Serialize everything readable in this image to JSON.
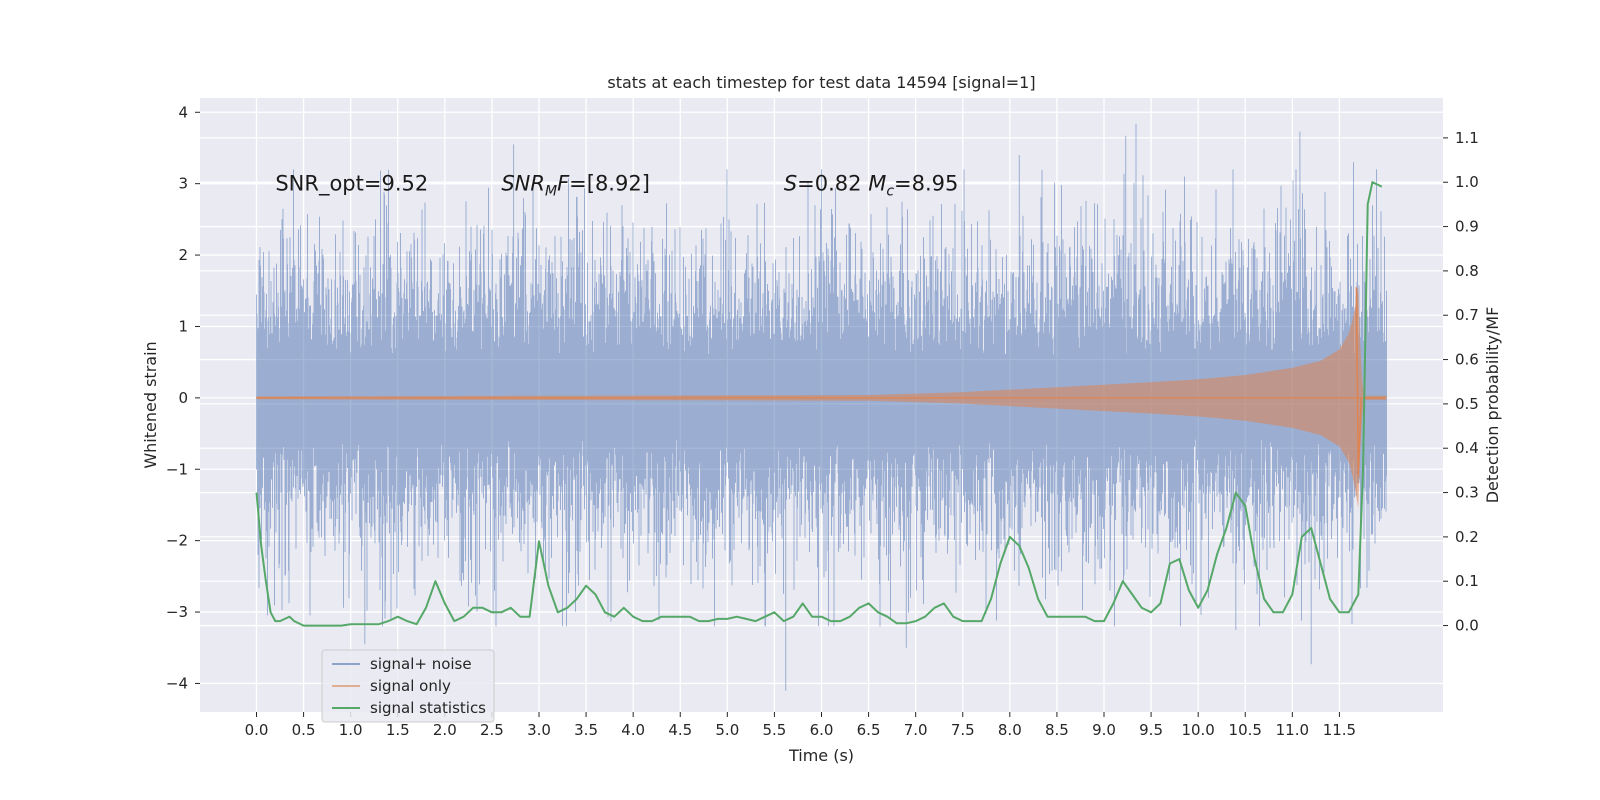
{
  "chart_data": {
    "type": "line",
    "title": "stats at each timestep for test data 14594 [signal=1]",
    "xlabel": "Time (s)",
    "ylabel": "Whitened strain",
    "y2label": "Detection probability/MF",
    "xlim": [
      -0.6,
      12.6
    ],
    "ylim": [
      -4.4,
      4.2
    ],
    "y2lim": [
      -0.195,
      1.19
    ],
    "xticks": [
      0.0,
      0.5,
      1.0,
      1.5,
      2.0,
      2.5,
      3.0,
      3.5,
      4.0,
      4.5,
      5.0,
      5.5,
      6.0,
      6.5,
      7.0,
      7.5,
      8.0,
      8.5,
      9.0,
      9.5,
      10.0,
      10.5,
      11.0,
      11.5
    ],
    "xtick_labels": [
      "0.0",
      "0.5",
      "1.0",
      "1.5",
      "2.0",
      "2.5",
      "3.0",
      "3.5",
      "4.0",
      "4.5",
      "5.0",
      "5.5",
      "6.0",
      "6.5",
      "7.0",
      "7.5",
      "8.0",
      "8.5",
      "9.0",
      "9.5",
      "10.0",
      "10.5",
      "11.0",
      "11.5"
    ],
    "yticks": [
      -4,
      -3,
      -2,
      -1,
      0,
      1,
      2,
      3,
      4
    ],
    "ytick_labels": [
      "−4",
      "−3",
      "−2",
      "−1",
      "0",
      "1",
      "2",
      "3",
      "4"
    ],
    "y2ticks": [
      0.0,
      0.1,
      0.2,
      0.3,
      0.4,
      0.5,
      0.6,
      0.7,
      0.8,
      0.9,
      1.0,
      1.1
    ],
    "y2tick_labels": [
      "0.0",
      "0.1",
      "0.2",
      "0.3",
      "0.4",
      "0.5",
      "0.6",
      "0.7",
      "0.8",
      "0.9",
      "1.0",
      "1.1"
    ],
    "grid": true,
    "legend_position": "lower-left",
    "annotations": [
      {
        "parts": [
          {
            "t": "SNR_opt=9.52"
          }
        ],
        "x": 0.2,
        "y": 3.0
      },
      {
        "parts": [
          {
            "t": "SNR",
            "i": true
          },
          {
            "t": "M",
            "i": true,
            "sub": true
          },
          {
            "t": "F",
            "i": true
          },
          {
            "t": "=[8.92]"
          }
        ],
        "x": 2.6,
        "y": 3.0
      },
      {
        "parts": [
          {
            "t": "S",
            "i": true
          },
          {
            "t": "=0.82   "
          },
          {
            "t": "M",
            "i": true
          },
          {
            "t": "c",
            "i": true,
            "sub": true
          },
          {
            "t": "=8.95"
          }
        ],
        "x": 5.6,
        "y": 3.0
      }
    ],
    "series": [
      {
        "name": "signal+ noise",
        "color": "#4c72b0",
        "axis": "left",
        "style": "noise",
        "t_range": [
          0.0,
          12.0
        ],
        "band_std": 0.95,
        "extremes": [
          {
            "x": 1.15,
            "y": -3.45
          },
          {
            "x": 2.73,
            "y": 3.55
          },
          {
            "x": 5.62,
            "y": -4.1
          },
          {
            "x": 6.9,
            "y": -3.5
          },
          {
            "x": 9.23,
            "y": 3.67
          },
          {
            "x": 9.34,
            "y": 3.84
          },
          {
            "x": 11.08,
            "y": 3.73
          },
          {
            "x": 11.2,
            "y": -3.73
          },
          {
            "x": 10.4,
            "y": -3.25
          },
          {
            "x": 8.1,
            "y": 3.4
          },
          {
            "x": 11.65,
            "y": 3.3
          },
          {
            "x": 6.0,
            "y": 3.2
          }
        ]
      },
      {
        "name": "signal only",
        "color": "#dd8452",
        "axis": "left",
        "style": "chirp",
        "envelope_x": [
          0.0,
          6.5,
          7.5,
          8.5,
          9.5,
          10.0,
          10.5,
          11.0,
          11.3,
          11.5,
          11.6,
          11.65,
          11.7,
          11.73,
          11.76,
          12.0
        ],
        "envelope_y": [
          0.02,
          0.04,
          0.08,
          0.15,
          0.22,
          0.26,
          0.32,
          0.42,
          0.52,
          0.68,
          0.9,
          1.15,
          1.55,
          0.4,
          0.03,
          0.03
        ],
        "spike": {
          "x": [
            11.68,
            11.7,
            11.73
          ],
          "y": [
            1.55,
            -1.1,
            0.0
          ]
        }
      },
      {
        "name": "signal statistics",
        "color": "#55a868",
        "axis": "right",
        "style": "line",
        "x": [
          0.0,
          0.05,
          0.1,
          0.15,
          0.2,
          0.25,
          0.3,
          0.35,
          0.4,
          0.5,
          0.6,
          0.7,
          0.8,
          0.9,
          1.0,
          1.1,
          1.2,
          1.3,
          1.4,
          1.5,
          1.6,
          1.7,
          1.8,
          1.9,
          2.0,
          2.1,
          2.2,
          2.3,
          2.4,
          2.5,
          2.6,
          2.7,
          2.8,
          2.9,
          3.0,
          3.1,
          3.2,
          3.3,
          3.4,
          3.5,
          3.6,
          3.7,
          3.8,
          3.9,
          4.0,
          4.1,
          4.2,
          4.3,
          4.4,
          4.5,
          4.6,
          4.7,
          4.8,
          4.9,
          5.0,
          5.1,
          5.2,
          5.3,
          5.4,
          5.5,
          5.6,
          5.7,
          5.8,
          5.9,
          6.0,
          6.1,
          6.2,
          6.3,
          6.4,
          6.5,
          6.6,
          6.7,
          6.8,
          6.9,
          7.0,
          7.1,
          7.2,
          7.3,
          7.4,
          7.5,
          7.6,
          7.7,
          7.8,
          7.9,
          8.0,
          8.1,
          8.2,
          8.3,
          8.4,
          8.5,
          8.6,
          8.7,
          8.8,
          8.9,
          9.0,
          9.1,
          9.2,
          9.3,
          9.4,
          9.5,
          9.6,
          9.7,
          9.8,
          9.9,
          10.0,
          10.1,
          10.2,
          10.3,
          10.4,
          10.5,
          10.6,
          10.7,
          10.8,
          10.9,
          11.0,
          11.1,
          11.2,
          11.3,
          11.4,
          11.5,
          11.6,
          11.7,
          11.75,
          11.8,
          11.85,
          11.9,
          11.95
        ],
        "y": [
          0.3,
          0.18,
          0.1,
          0.03,
          0.01,
          0.01,
          0.015,
          0.02,
          0.01,
          0.0,
          0.0,
          0.0,
          0.0,
          0.0,
          0.003,
          0.003,
          0.003,
          0.003,
          0.01,
          0.02,
          0.01,
          0.003,
          0.04,
          0.1,
          0.05,
          0.01,
          0.02,
          0.04,
          0.04,
          0.03,
          0.03,
          0.04,
          0.02,
          0.02,
          0.19,
          0.09,
          0.03,
          0.04,
          0.06,
          0.09,
          0.07,
          0.03,
          0.02,
          0.04,
          0.02,
          0.01,
          0.01,
          0.02,
          0.02,
          0.02,
          0.02,
          0.01,
          0.01,
          0.015,
          0.015,
          0.02,
          0.015,
          0.01,
          0.02,
          0.03,
          0.01,
          0.02,
          0.05,
          0.02,
          0.02,
          0.01,
          0.01,
          0.02,
          0.04,
          0.05,
          0.03,
          0.02,
          0.005,
          0.005,
          0.01,
          0.02,
          0.04,
          0.05,
          0.02,
          0.01,
          0.01,
          0.01,
          0.06,
          0.14,
          0.2,
          0.18,
          0.13,
          0.06,
          0.02,
          0.02,
          0.02,
          0.02,
          0.02,
          0.01,
          0.01,
          0.05,
          0.1,
          0.07,
          0.04,
          0.03,
          0.05,
          0.14,
          0.15,
          0.08,
          0.04,
          0.08,
          0.16,
          0.22,
          0.3,
          0.27,
          0.15,
          0.06,
          0.03,
          0.03,
          0.07,
          0.2,
          0.22,
          0.14,
          0.06,
          0.03,
          0.03,
          0.07,
          0.35,
          0.95,
          1.0,
          0.995,
          0.99
        ]
      }
    ]
  }
}
